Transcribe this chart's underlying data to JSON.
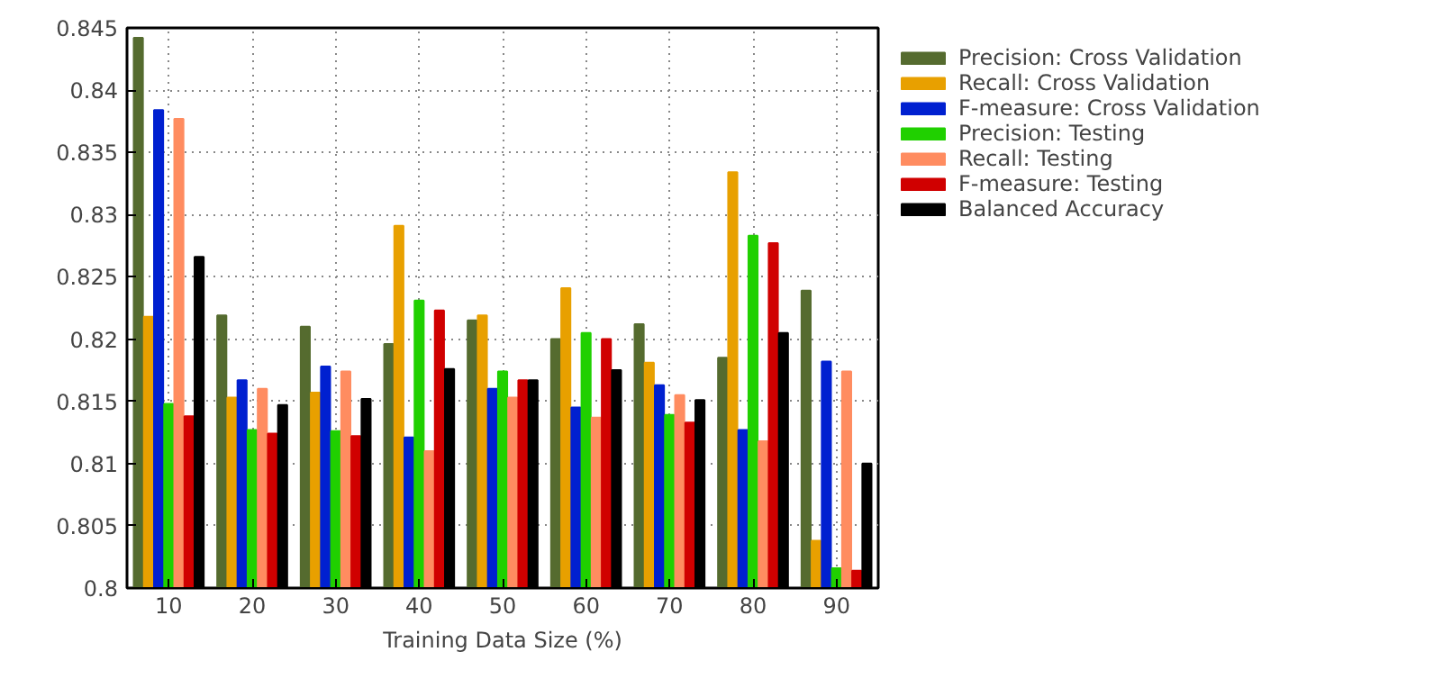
{
  "chart_data": {
    "type": "bar",
    "xlabel": "Training Data Size (%)",
    "categories": [
      "10",
      "20",
      "30",
      "40",
      "50",
      "60",
      "70",
      "80",
      "90"
    ],
    "series": [
      {
        "name": "Precision: Cross Validation",
        "color": "#556b2f",
        "values": [
          0.8442,
          0.8219,
          0.821,
          0.8196,
          0.8215,
          0.82,
          0.8212,
          0.8185,
          0.8239
        ]
      },
      {
        "name": "Recall: Cross Validation",
        "color": "#e8a000",
        "values": [
          0.8218,
          0.8153,
          0.8157,
          0.8291,
          0.8219,
          0.8241,
          0.8181,
          0.8334,
          0.8038
        ]
      },
      {
        "name": "F-measure: Cross Validation",
        "color": "#0020d0",
        "values": [
          0.8384,
          0.8167,
          0.8178,
          0.8121,
          0.816,
          0.8145,
          0.8163,
          0.8127,
          0.8182
        ]
      },
      {
        "name": "Precision: Testing",
        "color": "#20d000",
        "values": [
          0.8148,
          0.8127,
          0.8126,
          0.8231,
          0.8174,
          0.8205,
          0.8139,
          0.8283,
          0.8016
        ]
      },
      {
        "name": "Recall: Testing",
        "color": "#ff8c60",
        "values": [
          0.8377,
          0.816,
          0.8174,
          0.811,
          0.8153,
          0.8137,
          0.8155,
          0.8118,
          0.8174
        ]
      },
      {
        "name": "F-measure: Testing",
        "color": "#d00000",
        "values": [
          0.8138,
          0.8124,
          0.8122,
          0.8223,
          0.8167,
          0.82,
          0.8133,
          0.8277,
          0.8014
        ]
      },
      {
        "name": "Balanced Accuracy",
        "color": "#000000",
        "values": [
          0.8266,
          0.8147,
          0.8152,
          0.8176,
          0.8167,
          0.8175,
          0.8151,
          0.8205,
          0.81
        ]
      }
    ],
    "ylim": [
      0.8,
      0.845
    ],
    "yticks": [
      0.8,
      0.805,
      0.81,
      0.815,
      0.82,
      0.825,
      0.83,
      0.835,
      0.84,
      0.845
    ],
    "grid": true,
    "legend": "top right"
  }
}
